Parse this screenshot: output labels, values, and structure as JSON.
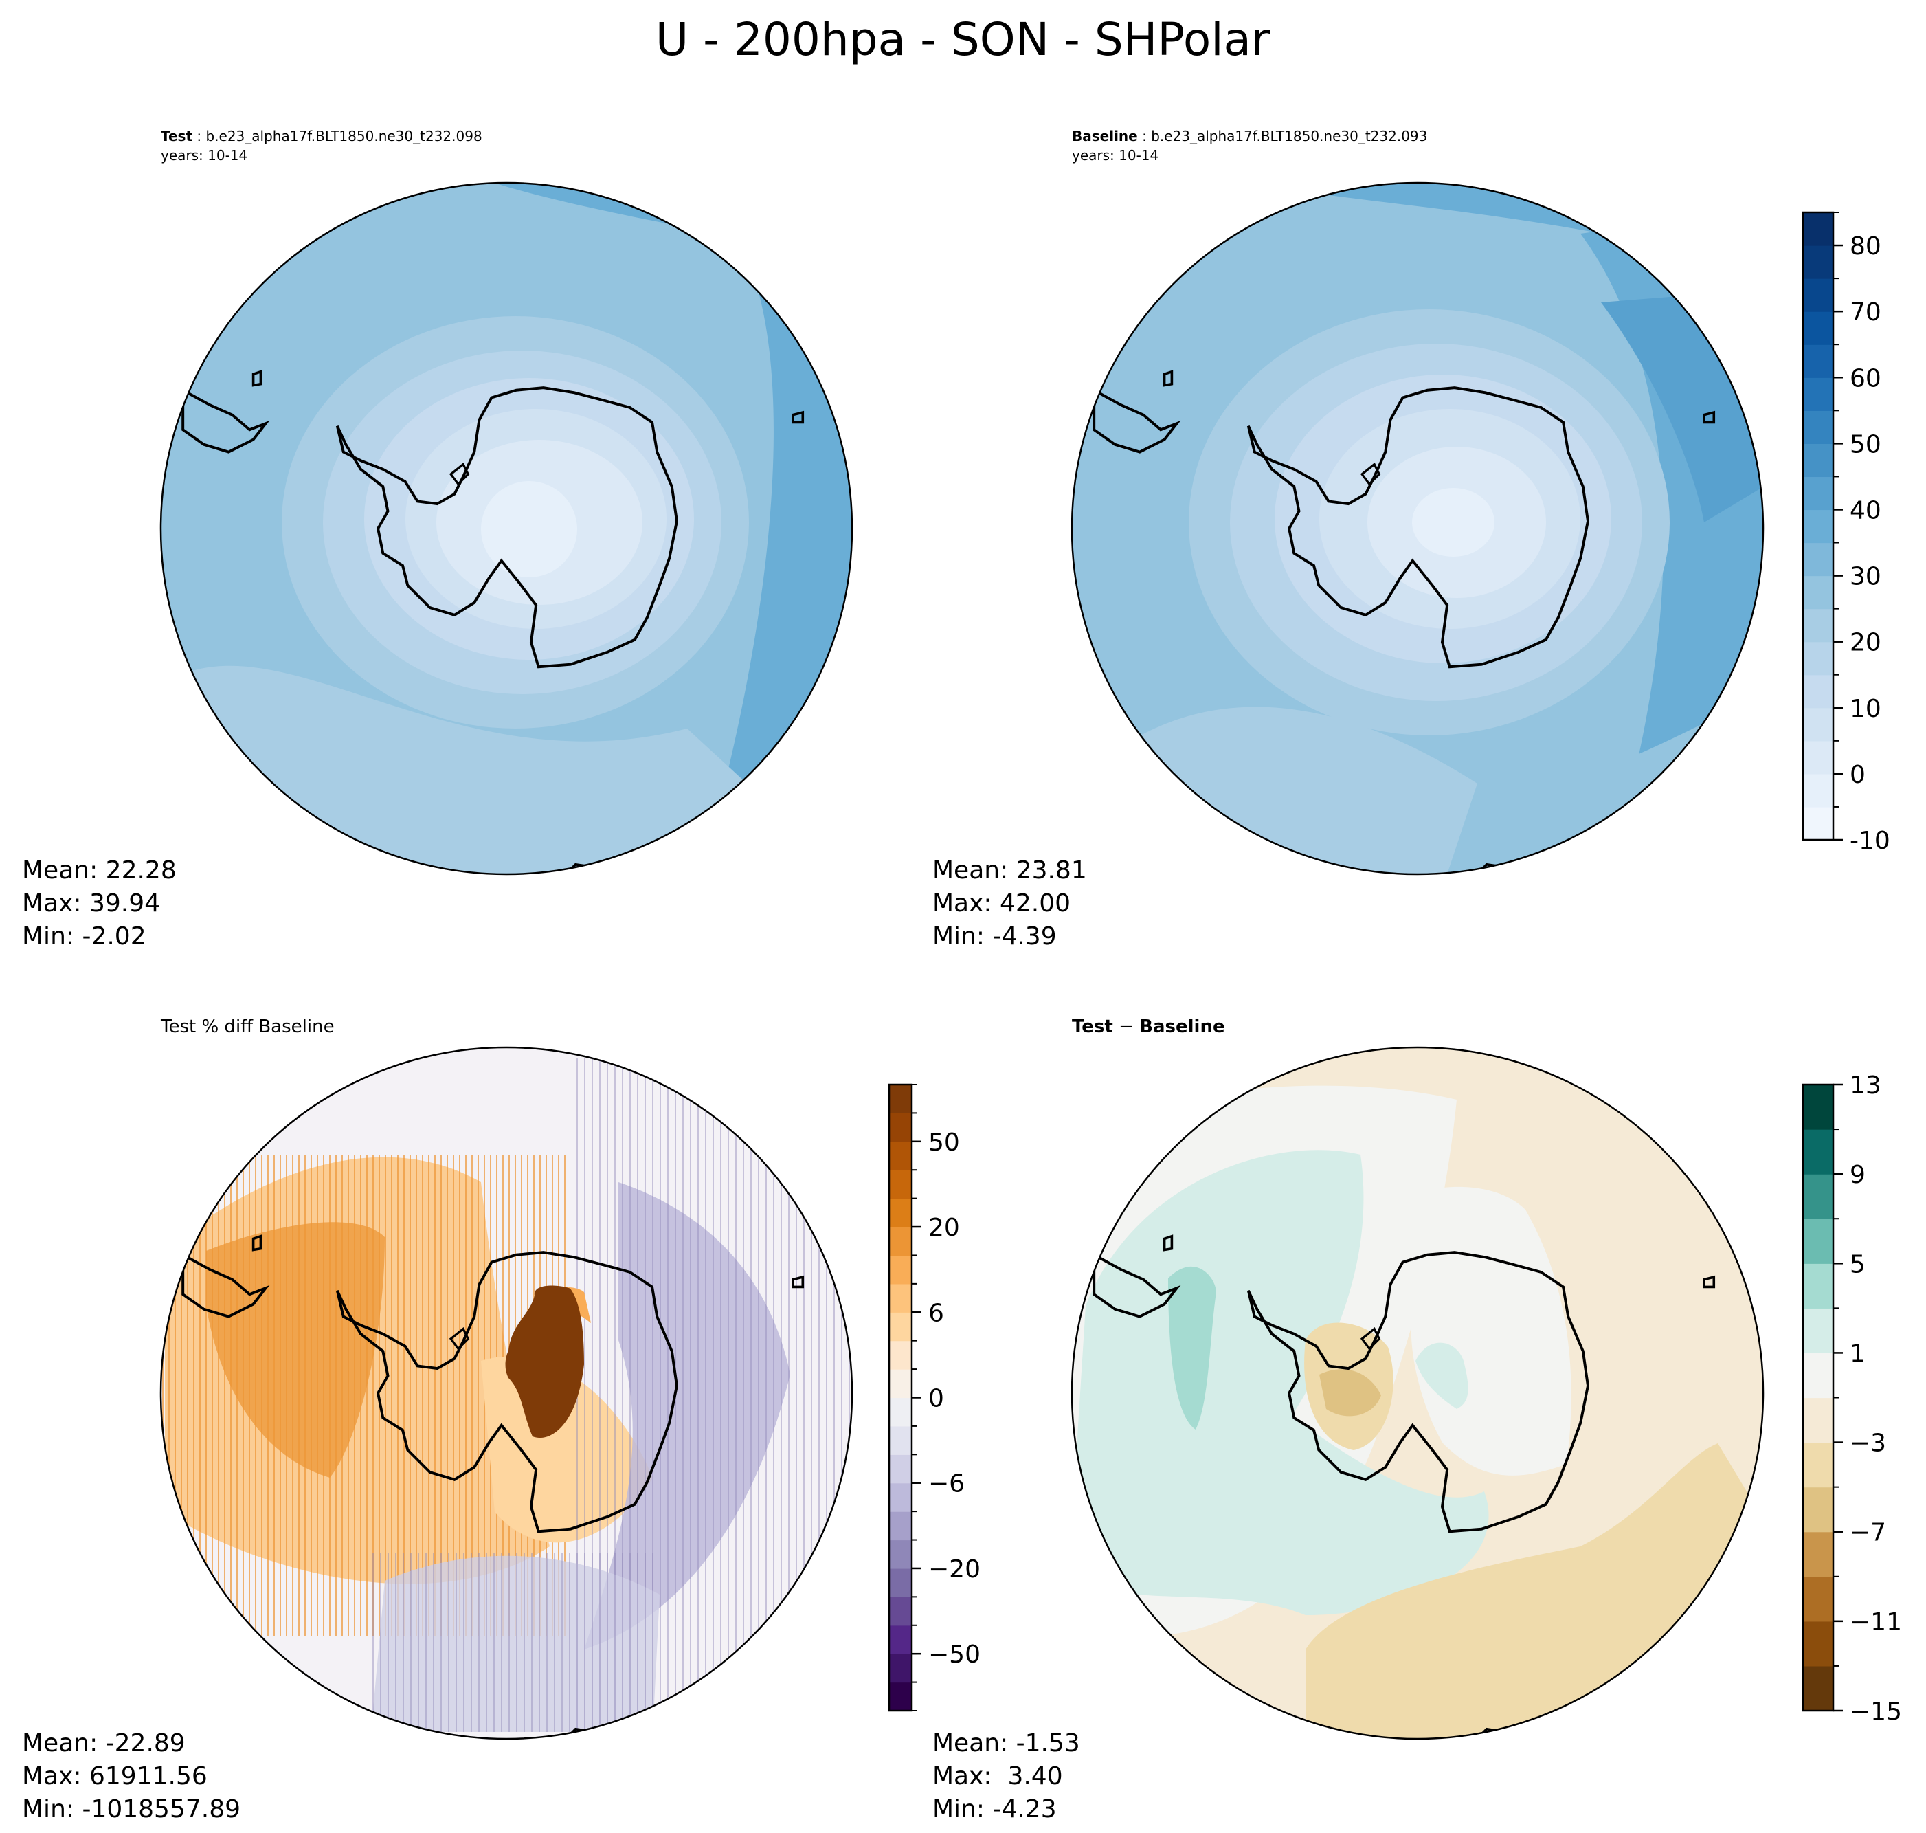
{
  "title": "U - 200hpa - SON - SHPolar",
  "chart_data": [
    {
      "type": "heatmap",
      "name": "test",
      "subtitle_label": "Test",
      "subtitle_case": " : b.e23_alpha17f.BLT1850.ne30_t232.098",
      "years": "years: 10-14",
      "stats": {
        "mean": "Mean: 22.28",
        "max": "Max: 39.94",
        "min": "Min: -2.02"
      }
    },
    {
      "type": "heatmap",
      "name": "baseline",
      "subtitle_label": "Baseline",
      "subtitle_case": " : b.e23_alpha17f.BLT1850.ne30_t232.093",
      "years": "years: 10-14",
      "stats": {
        "mean": "Mean: 23.81",
        "max": "Max: 42.00",
        "min": "Min: -4.39"
      },
      "colorbar": {
        "levels": [
          -10,
          -5,
          0,
          5,
          10,
          15,
          20,
          25,
          30,
          35,
          40,
          45,
          50,
          55,
          60,
          65,
          70,
          75,
          80,
          85
        ],
        "ticks": [
          "-10",
          "0",
          "10",
          "20",
          "30",
          "40",
          "50",
          "60",
          "70",
          "80"
        ],
        "tick_values": [
          -10,
          0,
          10,
          20,
          30,
          40,
          50,
          60,
          70,
          80
        ],
        "colors": [
          "#f0f6fd",
          "#e6f0fa",
          "#dce9f6",
          "#d0e2f2",
          "#c6dbef",
          "#b7d4ea",
          "#a8cde4",
          "#94c4df",
          "#7fb8da",
          "#6aaed6",
          "#58a1cf",
          "#4592c6",
          "#3484bf",
          "#2373b6",
          "#1763ab",
          "#0b559f",
          "#08478d",
          "#083a7a",
          "#08306b"
        ]
      }
    },
    {
      "type": "heatmap",
      "name": "percent-diff",
      "subtitle": "Test % diff Baseline",
      "stats": {
        "mean": "Mean: -22.89",
        "max": "Max: 61911.56",
        "min": "Min: -1018557.89"
      },
      "colorbar": {
        "levels": [
          -100,
          -75,
          -50,
          -40,
          -30,
          -20,
          -10,
          -8,
          -6,
          -4,
          -2,
          0,
          2,
          4,
          6,
          8,
          10,
          20,
          30,
          40,
          50,
          75,
          100
        ],
        "ticks": [
          "−50",
          "−20",
          "−6",
          "0",
          "6",
          "20",
          "50"
        ],
        "tick_values": [
          -50,
          -20,
          -6,
          0,
          6,
          20,
          50
        ],
        "colors": [
          "#2d004b",
          "#3f1569",
          "#542788",
          "#664a94",
          "#7a6ca6",
          "#8f87b8",
          "#a6a0ca",
          "#bdbadb",
          "#d0cfe6",
          "#e1e2ef",
          "#eeeff3",
          "#f8f0e7",
          "#fde6cc",
          "#fed69f",
          "#fdc37c",
          "#f9ad57",
          "#ec9535",
          "#dc7e17",
          "#c7670b",
          "#b05506",
          "#964405",
          "#7f3b08"
        ]
      }
    },
    {
      "type": "heatmap",
      "name": "difference",
      "subtitle_a": "Test",
      "subtitle_op": " − ",
      "subtitle_b": "Baseline",
      "stats": {
        "mean": "Mean: -1.53",
        "max": "Max:  3.40",
        "min": "Min: -4.23"
      },
      "colorbar": {
        "levels": [
          -15,
          -13,
          -11,
          -9,
          -7,
          -5,
          -3,
          -1,
          1,
          3,
          5,
          7,
          9,
          11,
          13
        ],
        "ticks": [
          "−15",
          "−11",
          "−7",
          "−3",
          "1",
          "5",
          "9",
          "13"
        ],
        "tick_values": [
          -15,
          -11,
          -7,
          -3,
          1,
          5,
          9,
          13
        ],
        "colors": [
          "#64390b",
          "#8b4d0c",
          "#ad6e24",
          "#c9954b",
          "#dfc283",
          "#efdbac",
          "#f5ead6",
          "#f3f4f2",
          "#d5ede8",
          "#a5dbd1",
          "#6bbcb1",
          "#35938a",
          "#0a6b66",
          "#00463c"
        ]
      }
    }
  ]
}
